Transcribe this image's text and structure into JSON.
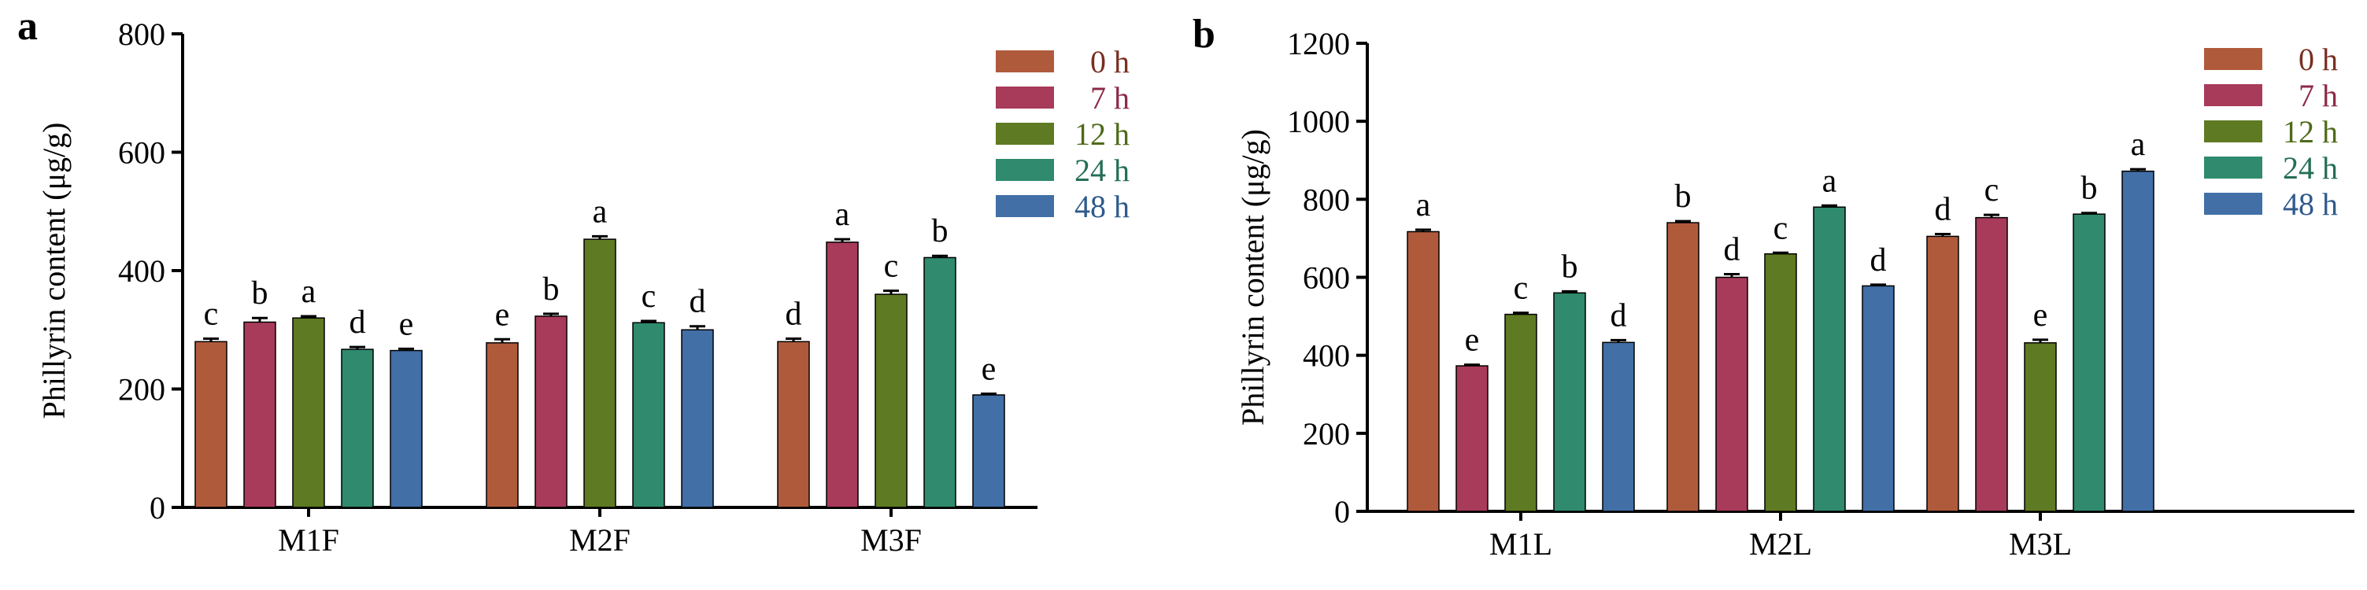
{
  "series_styles": [
    {
      "name": "0 h",
      "color": "#B05A3C",
      "text_color": "#7A2E22"
    },
    {
      "name": "7 h",
      "color": "#A83A5A",
      "text_color": "#8C2A47"
    },
    {
      "name": "12 h",
      "color": "#5E7A22",
      "text_color": "#4E6A18"
    },
    {
      "name": "24 h",
      "color": "#2F8A6E",
      "text_color": "#246E57"
    },
    {
      "name": "48 h",
      "color": "#416FA6",
      "text_color": "#2F5A8C"
    }
  ],
  "chart_data": [
    {
      "panel": "a",
      "type": "bar",
      "title": "",
      "xlabel": "",
      "ylabel": "Phillyrin content (μg/g)",
      "ylim": [
        0,
        800
      ],
      "yticks": [
        0,
        200,
        400,
        600,
        800
      ],
      "categories": [
        "M1F",
        "M2F",
        "M3F"
      ],
      "series": [
        {
          "name": "0 h",
          "values": [
            280,
            278,
            280
          ],
          "errors": [
            5,
            6,
            5
          ],
          "letters": [
            "c",
            "e",
            "d"
          ]
        },
        {
          "name": "7 h",
          "values": [
            313,
            323,
            448
          ],
          "errors": [
            7,
            4,
            5
          ],
          "letters": [
            "b",
            "b",
            "a"
          ]
        },
        {
          "name": "12 h",
          "values": [
            320,
            453,
            360
          ],
          "errors": [
            3,
            5,
            6
          ],
          "letters": [
            "a",
            "a",
            "c"
          ]
        },
        {
          "name": "24 h",
          "values": [
            267,
            312,
            422
          ],
          "errors": [
            4,
            3,
            3
          ],
          "letters": [
            "d",
            "c",
            "b"
          ]
        },
        {
          "name": "48 h",
          "values": [
            265,
            300,
            190
          ],
          "errors": [
            3,
            6,
            2
          ],
          "letters": [
            "e",
            "d",
            "e"
          ]
        }
      ]
    },
    {
      "panel": "b",
      "type": "bar",
      "title": "",
      "xlabel": "",
      "ylabel": "Phillyrin content (μg/g)",
      "ylim": [
        0,
        1200
      ],
      "yticks": [
        0,
        200,
        400,
        600,
        800,
        1000,
        1200
      ],
      "categories": [
        "M1L",
        "M2L",
        "M3L"
      ],
      "series": [
        {
          "name": "0 h",
          "values": [
            717,
            740,
            705
          ],
          "errors": [
            5,
            4,
            6
          ],
          "letters": [
            "a",
            "b",
            "d"
          ]
        },
        {
          "name": "7 h",
          "values": [
            373,
            600,
            753
          ],
          "errors": [
            3,
            8,
            7
          ],
          "letters": [
            "e",
            "d",
            "c"
          ]
        },
        {
          "name": "12 h",
          "values": [
            505,
            660,
            432
          ],
          "errors": [
            4,
            3,
            8
          ],
          "letters": [
            "c",
            "c",
            "e"
          ]
        },
        {
          "name": "24 h",
          "values": [
            560,
            780,
            762
          ],
          "errors": [
            4,
            4,
            3
          ],
          "letters": [
            "b",
            "a",
            "b"
          ]
        },
        {
          "name": "48 h",
          "values": [
            433,
            578,
            872
          ],
          "errors": [
            6,
            3,
            5
          ],
          "letters": [
            "d",
            "d",
            "a"
          ]
        }
      ]
    }
  ]
}
